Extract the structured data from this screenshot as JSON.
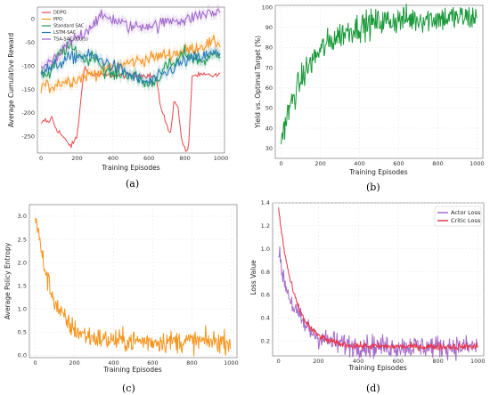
{
  "panels": [
    {
      "label": "(a)"
    },
    {
      "label": "(b)"
    },
    {
      "label": "(c)"
    },
    {
      "label": "(d)"
    }
  ],
  "chart_data": [
    {
      "type": "line",
      "xlabel": "Training Episodes",
      "ylabel": "Average Cumulative Reward",
      "xlim": [
        -20,
        1020
      ],
      "ylim": [
        -285,
        25
      ],
      "xticks": [
        0,
        200,
        400,
        600,
        800,
        1000
      ],
      "yticks": [
        0,
        -50,
        -100,
        -150,
        -200,
        -250
      ],
      "legend_position": "top-left",
      "series": [
        {
          "name": "DDPG",
          "color": "#e8474c",
          "x": [
            0,
            20,
            40,
            60,
            80,
            100,
            120,
            150,
            170,
            200,
            220,
            240,
            260,
            300,
            400,
            500,
            600,
            640,
            660,
            680,
            700,
            720,
            740,
            760,
            780,
            800,
            820,
            840,
            860,
            1000
          ],
          "y": [
            -225,
            -215,
            -220,
            -210,
            -230,
            -240,
            -250,
            -265,
            -270,
            -250,
            -180,
            -100,
            -115,
            -120,
            -120,
            -120,
            -120,
            -125,
            -180,
            -200,
            -230,
            -245,
            -170,
            -185,
            -250,
            -280,
            -280,
            -120,
            -120,
            -120
          ]
        },
        {
          "name": "PPO",
          "color": "#f7931e",
          "x": [
            0,
            50,
            100,
            150,
            200,
            250,
            300,
            350,
            400,
            450,
            500,
            550,
            600,
            650,
            700,
            750,
            800,
            850,
            900,
            950,
            1000
          ],
          "y": [
            -140,
            -145,
            -135,
            -132,
            -128,
            -120,
            -115,
            -110,
            -104,
            -98,
            -92,
            -88,
            -84,
            -80,
            -76,
            -72,
            -68,
            -62,
            -56,
            -52,
            -50
          ]
        },
        {
          "name": "Standard SAC",
          "color": "#1a9850",
          "x": [
            0,
            50,
            100,
            150,
            200,
            250,
            300,
            350,
            400,
            450,
            500,
            550,
            600,
            650,
            700,
            750,
            800,
            850,
            900,
            950,
            1000
          ],
          "y": [
            -115,
            -120,
            -75,
            -60,
            -70,
            -90,
            -75,
            -110,
            -120,
            -115,
            -118,
            -130,
            -140,
            -125,
            -100,
            -95,
            -70,
            -85,
            -90,
            -80,
            -70
          ]
        },
        {
          "name": "LSTM-SAC",
          "color": "#1f78b4",
          "x": [
            0,
            50,
            100,
            150,
            200,
            250,
            300,
            350,
            400,
            450,
            500,
            550,
            600,
            650,
            700,
            750,
            800,
            850,
            900,
            950,
            1000
          ],
          "y": [
            -110,
            -105,
            -95,
            -85,
            -80,
            -78,
            -82,
            -90,
            -100,
            -110,
            -120,
            -130,
            -135,
            -125,
            -115,
            -100,
            -90,
            -85,
            -80,
            -75,
            -72
          ]
        },
        {
          "name": "TSA-SAC (Ours)",
          "color": "#9e64c8",
          "x": [
            0,
            50,
            100,
            150,
            200,
            250,
            300,
            350,
            400,
            450,
            500,
            550,
            600,
            650,
            700,
            750,
            800,
            850,
            900,
            950,
            1000
          ],
          "y": [
            -100,
            -95,
            -80,
            -55,
            -40,
            -25,
            -5,
            5,
            0,
            -10,
            -18,
            -15,
            -12,
            -15,
            -5,
            0,
            -5,
            5,
            10,
            12,
            15
          ]
        }
      ]
    },
    {
      "type": "line",
      "xlabel": "Training Episodes",
      "ylabel": "Yield vs. Optimal Target (%)",
      "xlim": [
        -30,
        1030
      ],
      "ylim": [
        25,
        101
      ],
      "xticks": [
        0,
        200,
        400,
        600,
        800,
        1000
      ],
      "yticks": [
        30,
        40,
        50,
        60,
        70,
        80,
        90,
        100
      ],
      "series": [
        {
          "color": "#1a9a3a",
          "start": 35,
          "end": 95,
          "tau": 155,
          "noise": 3.5
        }
      ]
    },
    {
      "type": "line",
      "xlabel": "Training Episodes",
      "ylabel": "Average Policy Entropy",
      "xlim": [
        -30,
        1030
      ],
      "ylim": [
        -0.05,
        3.25
      ],
      "xticks": [
        0,
        200,
        400,
        600,
        800,
        1000
      ],
      "yticks": [
        0.0,
        0.5,
        1.0,
        1.5,
        2.0,
        2.5,
        3.0
      ],
      "series": [
        {
          "color": "#f7941d",
          "start": 3.1,
          "end": 0.3,
          "tau": 85,
          "noise": 0.12
        }
      ]
    },
    {
      "type": "line",
      "xlabel": "Training Episodes",
      "ylabel": "Loss Value",
      "xlim": [
        -30,
        1030
      ],
      "ylim": [
        0.07,
        1.4
      ],
      "xticks": [
        0,
        200,
        400,
        600,
        800,
        1000
      ],
      "yticks": [
        0.2,
        0.4,
        0.6,
        0.8,
        1.0,
        1.2,
        1.4
      ],
      "legend_position": "top-right",
      "series": [
        {
          "name": "Actor Loss",
          "color": "#a66bc9",
          "start": 0.95,
          "end": 0.15,
          "tau": 90,
          "noise": 0.05
        },
        {
          "name": "Critic Loss",
          "color": "#e8344a",
          "start": 1.35,
          "end": 0.15,
          "tau": 80,
          "noise": 0.015
        }
      ]
    }
  ]
}
